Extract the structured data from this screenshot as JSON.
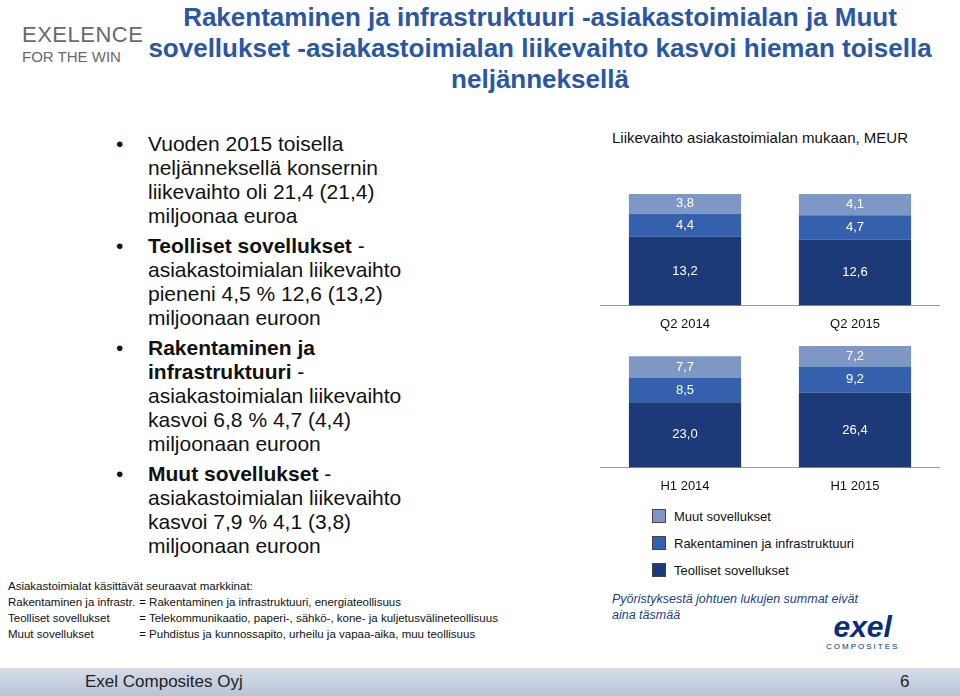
{
  "header": {
    "logo": [
      "EXELENCE",
      "FOR THE WIN"
    ],
    "title": "Rakentaminen ja infrastruktuuri -asiakastoimialan ja Muut sovellukset -asiakastoimialan liikevaihto kasvoi hieman toisella neljänneksellä"
  },
  "bullets": [
    {
      "bold": "",
      "text": "Vuoden 2015 toisella neljänneksellä konsernin liikevaihto oli 21,4 (21,4) miljoonaa euroa"
    },
    {
      "bold": "Teolliset sovellukset",
      "text": " - asiakastoimialan liikevaihto pieneni 4,5 % 12,6 (13,2) miljoonaan euroon"
    },
    {
      "bold": "Rakentaminen ja infrastruktuuri",
      "text": " - asiakastoimialan liikevaihto kasvoi 6,8 % 4,7 (4,4) miljoonaan euroon"
    },
    {
      "bold": "Muut sovellukset",
      "text": " - asiakastoimialan liikevaihto kasvoi 7,9 % 4,1 (3,8) miljoonaan euroon"
    }
  ],
  "definitions": {
    "heading": "Asiakastoimialat käsittävät seuraavat markkinat:",
    "rows": [
      [
        "Rakentaminen ja infrastr.",
        "= Rakentaminen ja infrastruktuuri, energiateollisuus"
      ],
      [
        "Teolliset sovellukset",
        "= Telekommunikaatio, paperi-, sähkö-, kone- ja kuljetusvälineteollisuus"
      ],
      [
        "Muut sovellukset",
        "= Puhdistus ja kunnossapito, urheilu ja vapaa-aika, muu teollisuus"
      ]
    ]
  },
  "chart_data": [
    {
      "type": "bar",
      "title": "Liikevaihto asiakastoimialan mukaan, MEUR",
      "stacked": true,
      "data_labels": true,
      "tick_labels": "x",
      "grid": false,
      "categories": [
        "Q2 2014",
        "Q2 2015"
      ],
      "series": [
        {
          "name": "Teolliset sovellukset",
          "color": "#1c3a78",
          "values": [
            13.2,
            12.6
          ],
          "value_labels": [
            "13,2",
            "12,6"
          ]
        },
        {
          "name": "Rakentaminen ja infrastruktuuri",
          "color": "#3560ae",
          "values": [
            4.4,
            4.7
          ],
          "value_labels": [
            "4,4",
            "4,7"
          ]
        },
        {
          "name": "Muut sovellukset",
          "color": "#7f97c5",
          "values": [
            3.8,
            4.1
          ],
          "value_labels": [
            "3,8",
            "4,1"
          ]
        }
      ]
    },
    {
      "type": "bar",
      "stacked": true,
      "data_labels": true,
      "tick_labels": "x",
      "grid": false,
      "legend": "bottom",
      "categories": [
        "H1 2014",
        "H1 2015"
      ],
      "series": [
        {
          "name": "Teolliset sovellukset",
          "color": "#1c3a78",
          "values": [
            23.0,
            26.4
          ],
          "value_labels": [
            "23,0",
            "26,4"
          ]
        },
        {
          "name": "Rakentaminen ja infrastruktuuri",
          "color": "#3560ae",
          "values": [
            8.5,
            9.2
          ],
          "value_labels": [
            "8,5",
            "9,2"
          ]
        },
        {
          "name": "Muut sovellukset",
          "color": "#7f97c5",
          "values": [
            7.7,
            7.2
          ],
          "value_labels": [
            "7,7",
            "7,2"
          ]
        }
      ]
    }
  ],
  "note": "Pyöristyksestä johtuen lukujen summat eivät aina täsmää",
  "company_logo": [
    "exel",
    "COMPOSITES"
  ],
  "footer": {
    "left": "Exel Composites Oyj",
    "right": "6"
  }
}
